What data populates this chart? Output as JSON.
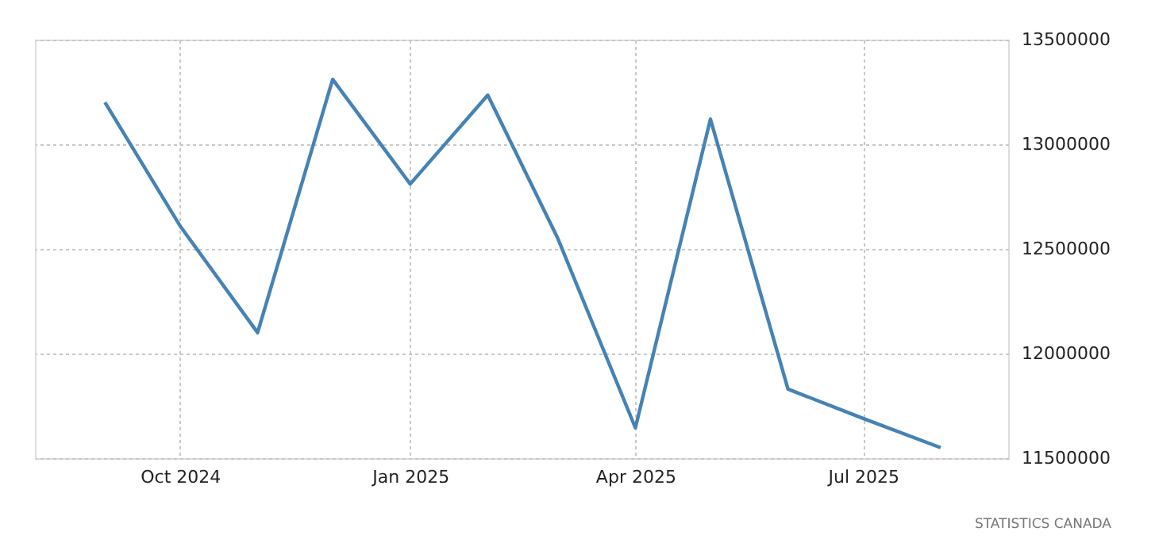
{
  "chart_data": {
    "type": "line",
    "x": [
      "2024-09-01",
      "2024-10-01",
      "2024-11-01",
      "2024-12-01",
      "2025-01-01",
      "2025-02-01",
      "2025-03-01",
      "2025-04-01",
      "2025-05-01",
      "2025-06-01",
      "2025-07-01",
      "2025-08-01"
    ],
    "series": [
      {
        "color": "#4682b4",
        "values": [
          13200000,
          12610000,
          12100000,
          13310000,
          12810000,
          13235000,
          12550000,
          11645000,
          13120000,
          11830000,
          11690000,
          11550000
        ]
      }
    ],
    "xlim": [
      "2024-08-04",
      "2025-08-28"
    ],
    "xticks": [
      {
        "value": "2024-10-01",
        "label": "Oct 2024"
      },
      {
        "value": "2025-01-01",
        "label": "Jan 2025"
      },
      {
        "value": "2025-04-01",
        "label": "Apr 2025"
      },
      {
        "value": "2025-07-01",
        "label": "Jul 2025"
      }
    ],
    "ylim": [
      11500000,
      13500000
    ],
    "yticks": [
      11500000,
      12000000,
      12500000,
      13000000,
      13500000
    ],
    "grid": true,
    "marker": "none",
    "line_style": "solid",
    "annotations": [
      "STATISTICS CANADA"
    ]
  }
}
